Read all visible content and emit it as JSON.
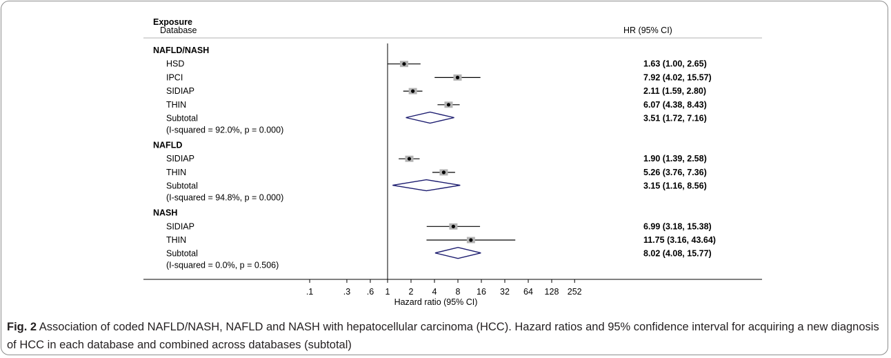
{
  "header": {
    "exposure": "Exposure",
    "database": "Database",
    "hr": "HR (95% CI)"
  },
  "chart_data": {
    "type": "forest",
    "xlabel": "Hazard ratio (95% CI)",
    "x_scale": "log",
    "xlim": [
      0.1,
      252
    ],
    "reference_line": 1,
    "xticks": [
      {
        "value": 0.1,
        "label": ".1"
      },
      {
        "value": 0.3,
        "label": ".3"
      },
      {
        "value": 0.6,
        "label": ".6"
      },
      {
        "value": 1,
        "label": "1"
      },
      {
        "value": 2,
        "label": "2"
      },
      {
        "value": 4,
        "label": "4"
      },
      {
        "value": 8,
        "label": "8"
      },
      {
        "value": 16,
        "label": "16"
      },
      {
        "value": 32,
        "label": "32"
      },
      {
        "value": 64,
        "label": "64"
      },
      {
        "value": 128,
        "label": "128"
      },
      {
        "value": 252,
        "label": "252"
      }
    ],
    "groups": [
      {
        "name": "NAFLD/NASH",
        "studies": [
          {
            "label": "HSD",
            "hr": 1.63,
            "lo": 1.0,
            "hi": 2.65,
            "text": "1.63 (1.00, 2.65)"
          },
          {
            "label": "IPCI",
            "hr": 7.92,
            "lo": 4.02,
            "hi": 15.57,
            "text": "7.92 (4.02, 15.57)"
          },
          {
            "label": "SIDIAP",
            "hr": 2.11,
            "lo": 1.59,
            "hi": 2.8,
            "text": "2.11 (1.59, 2.80)"
          },
          {
            "label": "THIN",
            "hr": 6.07,
            "lo": 4.38,
            "hi": 8.43,
            "text": "6.07 (4.38, 8.43)"
          }
        ],
        "subtotal": {
          "label": "Subtotal",
          "hr": 3.51,
          "lo": 1.72,
          "hi": 7.16,
          "text": "3.51 (1.72, 7.16)",
          "heterogeneity": "(I-squared = 92.0%, p = 0.000)"
        }
      },
      {
        "name": "NAFLD",
        "studies": [
          {
            "label": "SIDIAP",
            "hr": 1.9,
            "lo": 1.39,
            "hi": 2.58,
            "text": "1.90 (1.39, 2.58)"
          },
          {
            "label": "THIN",
            "hr": 5.26,
            "lo": 3.76,
            "hi": 7.36,
            "text": "5.26 (3.76, 7.36)"
          }
        ],
        "subtotal": {
          "label": "Subtotal",
          "hr": 3.15,
          "lo": 1.16,
          "hi": 8.56,
          "text": "3.15 (1.16, 8.56)",
          "heterogeneity": "(I-squared = 94.8%, p = 0.000)"
        }
      },
      {
        "name": "NASH",
        "studies": [
          {
            "label": "SIDIAP",
            "hr": 6.99,
            "lo": 3.18,
            "hi": 15.38,
            "text": "6.99 (3.18, 15.38)"
          },
          {
            "label": "THIN",
            "hr": 11.75,
            "lo": 3.16,
            "hi": 43.64,
            "text": "11.75 (3.16, 43.64)"
          }
        ],
        "subtotal": {
          "label": "Subtotal",
          "hr": 8.02,
          "lo": 4.08,
          "hi": 15.77,
          "text": "8.02 (4.08, 15.77)",
          "heterogeneity": "(I-squared = 0.0%, p = 0.506)"
        }
      }
    ]
  },
  "colors": {
    "diamond": "#1a1a6e",
    "weight_box": "#b3b3b3",
    "ci_line": "#000000",
    "frame": "#8c8c8c",
    "caption_text": "#231f20"
  },
  "caption": {
    "label": "Fig. 2",
    "text": "Association of coded NAFLD/NASH, NAFLD and NASH with hepatocellular carcinoma (HCC). Hazard ratios and 95% confidence interval for acquiring a new diagnosis of HCC in each database and combined across databases (subtotal)"
  }
}
